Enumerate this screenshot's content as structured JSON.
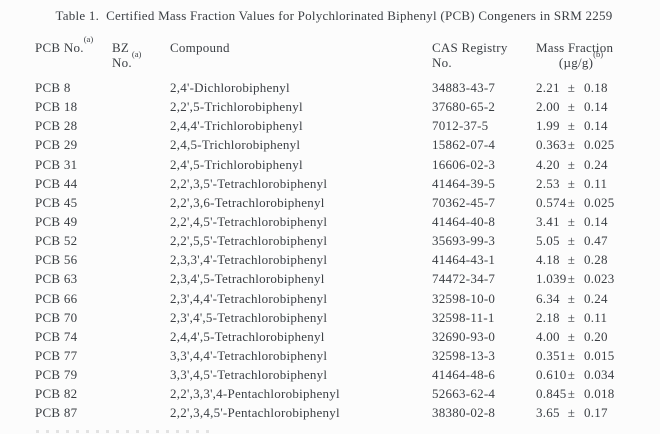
{
  "page": {
    "title": "Table 1.  Certified Mass Fraction Values for Polychlorinated Biphenyl (PCB) Congeners in SRM 2259"
  },
  "colors": {
    "text": "#3a3e43",
    "background": "#fcfcfc"
  },
  "table": {
    "header": {
      "pcb_no_line1": "PCB No.",
      "pcb_no_sup": "(a)",
      "bz_line1": "BZ",
      "bz_line2": "No.",
      "bz_sup": "(a)",
      "compound": "Compound",
      "cas_line1": "CAS Registry",
      "cas_line2": "No.",
      "mass_line1": "Mass Fraction",
      "mass_line2": "(µg/g)",
      "mass_sup": "(b)"
    },
    "rows": [
      {
        "pcb_no": "PCB 8",
        "bz_no": "",
        "compound": "2,4'-Dichlorobiphenyl",
        "cas": "34883-43-7",
        "value": "2.21",
        "pm": "±",
        "uncertainty": "0.18"
      },
      {
        "pcb_no": "PCB 18",
        "bz_no": "",
        "compound": "2,2',5-Trichlorobiphenyl",
        "cas": "37680-65-2",
        "value": "2.00",
        "pm": "±",
        "uncertainty": "0.14"
      },
      {
        "pcb_no": "PCB 28",
        "bz_no": "",
        "compound": "2,4,4'-Trichlorobiphenyl",
        "cas": "7012-37-5",
        "value": "1.99",
        "pm": "±",
        "uncertainty": "0.14"
      },
      {
        "pcb_no": "PCB 29",
        "bz_no": "",
        "compound": "2,4,5-Trichlorobiphenyl",
        "cas": "15862-07-4",
        "value": "0.363",
        "pm": "±",
        "uncertainty": "0.025"
      },
      {
        "pcb_no": "PCB 31",
        "bz_no": "",
        "compound": "2,4',5-Trichlorobiphenyl",
        "cas": "16606-02-3",
        "value": "4.20",
        "pm": "±",
        "uncertainty": "0.24"
      },
      {
        "pcb_no": "PCB 44",
        "bz_no": "",
        "compound": "2,2',3,5'-Tetrachlorobiphenyl",
        "cas": "41464-39-5",
        "value": "2.53",
        "pm": "±",
        "uncertainty": "0.11"
      },
      {
        "pcb_no": "PCB 45",
        "bz_no": "",
        "compound": "2,2',3,6-Tetrachlorobiphenyl",
        "cas": "70362-45-7",
        "value": "0.574",
        "pm": "±",
        "uncertainty": "0.025"
      },
      {
        "pcb_no": "PCB 49",
        "bz_no": "",
        "compound": "2,2',4,5'-Tetrachlorobiphenyl",
        "cas": "41464-40-8",
        "value": "3.41",
        "pm": "±",
        "uncertainty": "0.14"
      },
      {
        "pcb_no": "PCB 52",
        "bz_no": "",
        "compound": "2,2',5,5'-Tetrachlorobiphenyl",
        "cas": "35693-99-3",
        "value": "5.05",
        "pm": "±",
        "uncertainty": "0.47"
      },
      {
        "pcb_no": "PCB 56",
        "bz_no": "",
        "compound": "2,3,3',4'-Tetrachlorobiphenyl",
        "cas": "41464-43-1",
        "value": "4.18",
        "pm": "±",
        "uncertainty": "0.28"
      },
      {
        "pcb_no": "PCB 63",
        "bz_no": "",
        "compound": "2,3,4',5-Tetrachlorobiphenyl",
        "cas": "74472-34-7",
        "value": "1.039",
        "pm": "±",
        "uncertainty": "0.023"
      },
      {
        "pcb_no": "PCB 66",
        "bz_no": "",
        "compound": "2,3',4,4'-Tetrachlorobiphenyl",
        "cas": "32598-10-0",
        "value": "6.34",
        "pm": "±",
        "uncertainty": "0.24"
      },
      {
        "pcb_no": "PCB 70",
        "bz_no": "",
        "compound": "2,3',4',5-Tetrachlorobiphenyl",
        "cas": "32598-11-1",
        "value": "2.18",
        "pm": "±",
        "uncertainty": "0.11"
      },
      {
        "pcb_no": "PCB 74",
        "bz_no": "",
        "compound": "2,4,4',5-Tetrachlorobiphenyl",
        "cas": "32690-93-0",
        "value": "4.00",
        "pm": "±",
        "uncertainty": "0.20"
      },
      {
        "pcb_no": "PCB 77",
        "bz_no": "",
        "compound": "3,3',4,4'-Tetrachlorobiphenyl",
        "cas": "32598-13-3",
        "value": "0.351",
        "pm": "±",
        "uncertainty": "0.015"
      },
      {
        "pcb_no": "PCB 79",
        "bz_no": "",
        "compound": "3,3',4,5'-Tetrachlorobiphenyl",
        "cas": "41464-48-6",
        "value": "0.610",
        "pm": "±",
        "uncertainty": "0.034"
      },
      {
        "pcb_no": "PCB 82",
        "bz_no": "",
        "compound": "2,2',3,3',4-Pentachlorobiphenyl",
        "cas": "52663-62-4",
        "value": "0.845",
        "pm": "±",
        "uncertainty": "0.018"
      },
      {
        "pcb_no": "PCB 87",
        "bz_no": "",
        "compound": "2,2',3,4,5'-Pentachlorobiphenyl",
        "cas": "38380-02-8",
        "value": "3.65",
        "pm": "±",
        "uncertainty": "0.17"
      }
    ]
  }
}
